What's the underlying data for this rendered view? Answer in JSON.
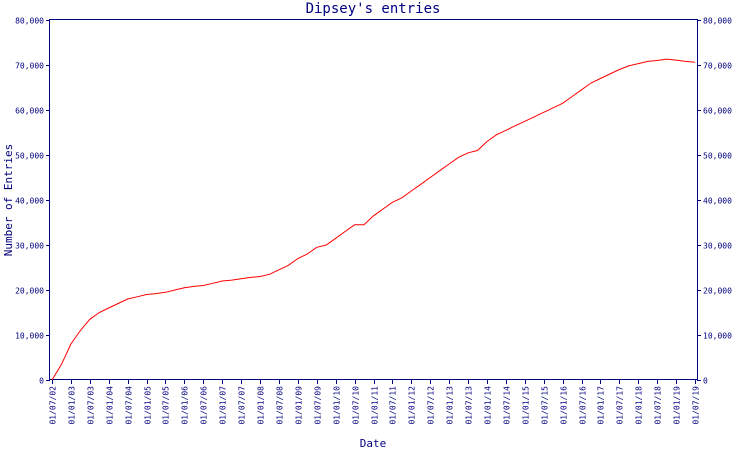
{
  "chart_data": {
    "type": "line",
    "title": "Dipsey's entries",
    "xlabel": "Date",
    "ylabel": "Number of Entries",
    "x_tick_labels": [
      "01/07/02",
      "01/01/03",
      "01/07/03",
      "01/01/04",
      "01/07/04",
      "01/01/05",
      "01/07/05",
      "01/01/06",
      "01/07/06",
      "01/01/07",
      "01/07/07",
      "01/01/08",
      "01/07/08",
      "01/01/09",
      "01/07/09",
      "01/01/10",
      "01/07/10",
      "01/01/11",
      "01/07/11",
      "01/01/12",
      "01/07/12",
      "01/01/13",
      "01/07/13",
      "01/01/14",
      "01/07/14",
      "01/01/15",
      "01/07/15",
      "01/01/16",
      "01/07/16",
      "01/01/17",
      "01/07/17",
      "01/01/18",
      "01/07/18",
      "01/01/19",
      "01/07/19"
    ],
    "y_tick_labels": [
      "0",
      "10,000",
      "20,000",
      "30,000",
      "40,000",
      "50,000",
      "60,000",
      "70,000",
      "80,000"
    ],
    "ylim": [
      0,
      80000
    ],
    "y_ticks": [
      0,
      10000,
      20000,
      30000,
      40000,
      50000,
      60000,
      70000,
      80000
    ],
    "grid": false,
    "series": [
      {
        "color": "#ff0000",
        "x": [
          "01/07/02",
          "01/10/02",
          "01/01/03",
          "01/04/03",
          "01/07/03",
          "01/10/03",
          "01/01/04",
          "01/04/04",
          "01/07/04",
          "01/10/04",
          "01/01/05",
          "01/04/05",
          "01/07/05",
          "01/10/05",
          "01/01/06",
          "01/04/06",
          "01/07/06",
          "01/10/06",
          "01/01/07",
          "01/04/07",
          "01/07/07",
          "01/10/07",
          "01/01/08",
          "01/04/08",
          "01/07/08",
          "01/10/08",
          "01/01/09",
          "01/04/09",
          "01/07/09",
          "01/10/09",
          "01/01/10",
          "01/04/10",
          "01/07/10",
          "01/10/10",
          "01/01/11",
          "01/04/11",
          "01/07/11",
          "01/10/11",
          "01/01/12",
          "01/04/12",
          "01/07/12",
          "01/10/12",
          "01/01/13",
          "01/04/13",
          "01/07/13",
          "01/10/13",
          "01/01/14",
          "01/04/14",
          "01/07/14",
          "01/10/14",
          "01/01/15",
          "01/04/15",
          "01/07/15",
          "01/10/15",
          "01/01/16",
          "01/04/16",
          "01/07/16",
          "01/10/16",
          "01/01/17",
          "01/04/17",
          "01/07/17",
          "01/10/17",
          "01/01/18",
          "01/04/18",
          "01/07/18",
          "01/10/18",
          "01/01/19",
          "01/04/19",
          "01/07/19"
        ],
        "values": [
          0,
          3500,
          8000,
          11000,
          13500,
          15000,
          16000,
          17000,
          18000,
          18500,
          19000,
          19200,
          19500,
          20000,
          20500,
          20800,
          21000,
          21500,
          22000,
          22200,
          22500,
          22800,
          23000,
          23500,
          24500,
          25500,
          27000,
          28000,
          29500,
          30000,
          31500,
          33000,
          34500,
          34500,
          36500,
          38000,
          39500,
          40500,
          42000,
          43500,
          45000,
          46500,
          48000,
          49500,
          50500,
          51000,
          53000,
          54500,
          55500,
          56500,
          57500,
          58500,
          59500,
          60500,
          61500,
          63000,
          64500,
          66000,
          67000,
          68000,
          69000,
          69800,
          70300,
          70800,
          71000,
          71300,
          71100,
          70800,
          70600
        ]
      }
    ]
  }
}
